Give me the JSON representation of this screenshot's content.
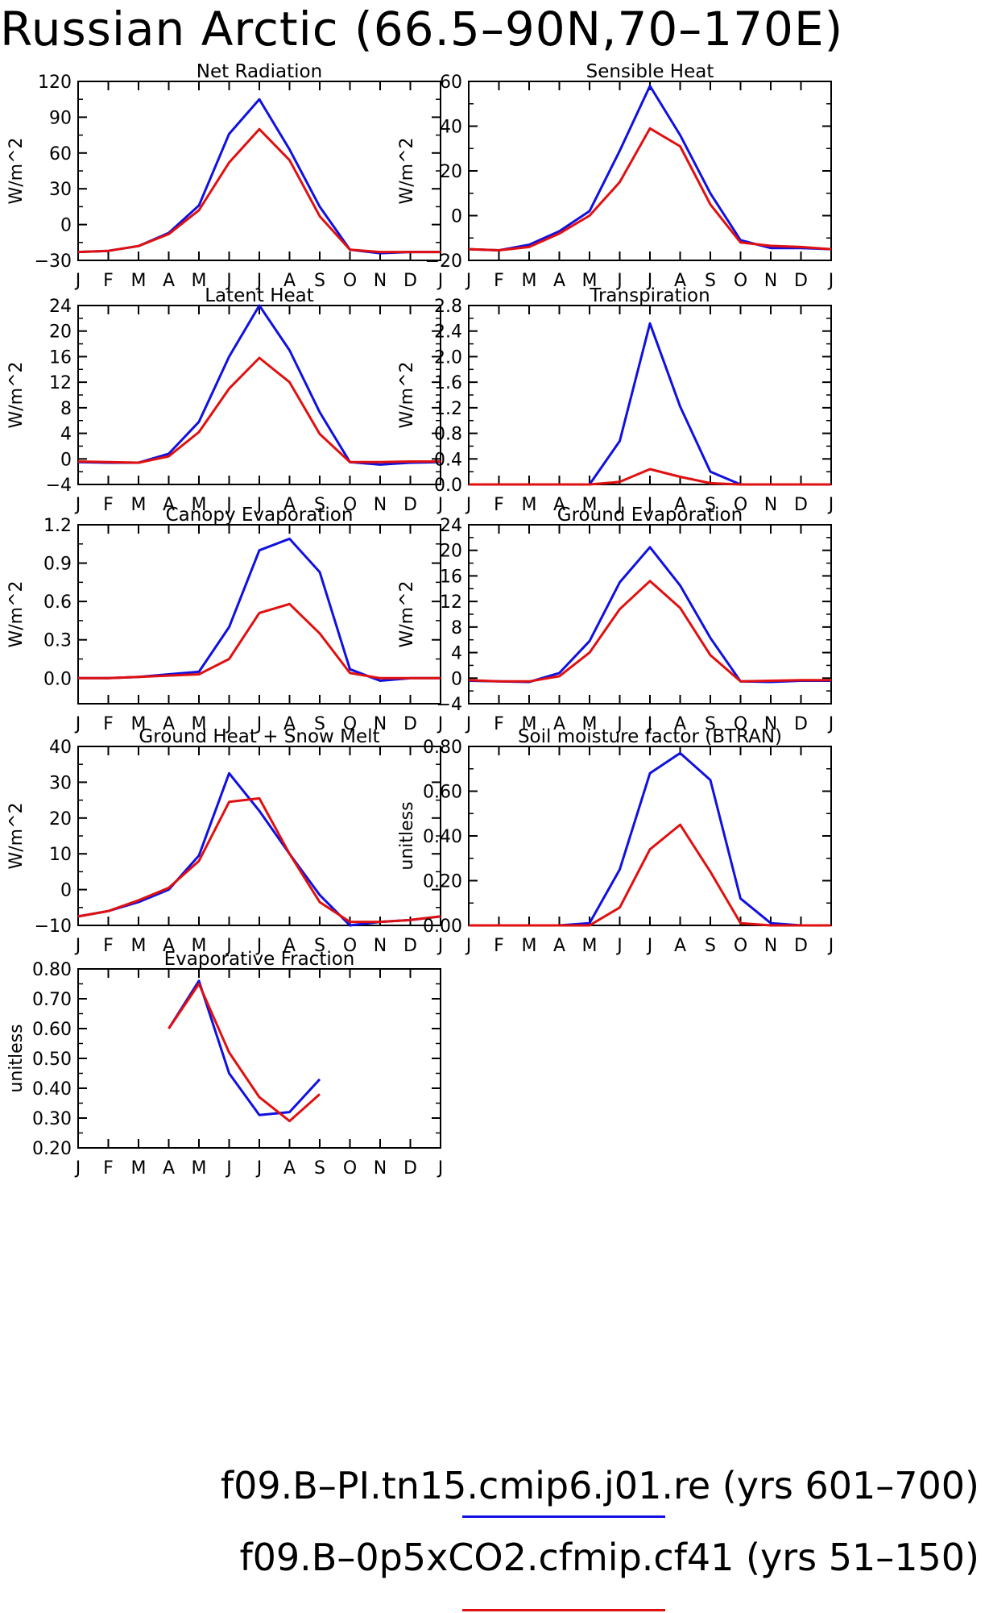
{
  "page": {
    "title": "Russian Arctic (66.5–90N,70–170E)"
  },
  "months": [
    "J",
    "F",
    "M",
    "A",
    "M",
    "J",
    "J",
    "A",
    "S",
    "O",
    "N",
    "D",
    "J"
  ],
  "legend": [
    {
      "label": "f09.B–PI.tn15.cmip6.j01.re (yrs 601–700)",
      "color": "#1010e0"
    },
    {
      "label": "f09.B–0p5xCO2.cfmip.cf41 (yrs 51–150)",
      "color": "#e01010"
    }
  ],
  "chart_data": [
    {
      "type": "line",
      "title": "Net Radiation",
      "ylabel": "W/m^2",
      "ylim": [
        -30,
        120
      ],
      "yticks": [
        -30,
        0,
        30,
        60,
        90,
        120
      ],
      "ytick_labels": [
        "−30",
        "0",
        "30",
        "60",
        "90",
        "120"
      ],
      "x": [
        "J",
        "F",
        "M",
        "A",
        "M",
        "J",
        "J",
        "A",
        "S",
        "O",
        "N",
        "D",
        "J"
      ],
      "series": [
        {
          "color": "#1010e0",
          "values": [
            -23,
            -22,
            -18,
            -7,
            16,
            76,
            105,
            63,
            15,
            -21,
            -24,
            -23,
            -23
          ]
        },
        {
          "color": "#e01010",
          "values": [
            -23,
            -22,
            -18,
            -8,
            12,
            52,
            80,
            54,
            7,
            -21,
            -23,
            -23,
            -23
          ]
        }
      ]
    },
    {
      "type": "line",
      "title": "Sensible Heat",
      "ylabel": "W/m^2",
      "ylim": [
        -20,
        60
      ],
      "yticks": [
        -20,
        0,
        20,
        40,
        60
      ],
      "ytick_labels": [
        "−20",
        "0",
        "20",
        "40",
        "60"
      ],
      "x": [
        "J",
        "F",
        "M",
        "A",
        "M",
        "J",
        "J",
        "A",
        "S",
        "O",
        "N",
        "D",
        "J"
      ],
      "series": [
        {
          "color": "#1010e0",
          "values": [
            -15,
            -15.5,
            -13,
            -7,
            2,
            29,
            58,
            36,
            10,
            -11,
            -14.5,
            -14.5,
            -15
          ]
        },
        {
          "color": "#e01010",
          "values": [
            -15,
            -15.5,
            -14,
            -8,
            0,
            15,
            39,
            31,
            5,
            -12,
            -13.5,
            -14,
            -15
          ]
        }
      ]
    },
    {
      "type": "line",
      "title": "Latent Heat",
      "ylabel": "W/m^2",
      "ylim": [
        -4,
        24
      ],
      "yticks": [
        -4,
        0,
        4,
        8,
        12,
        16,
        20,
        24
      ],
      "ytick_labels": [
        "−4",
        "0",
        "4",
        "8",
        "12",
        "16",
        "20",
        "24"
      ],
      "x": [
        "J",
        "F",
        "M",
        "A",
        "M",
        "J",
        "J",
        "A",
        "S",
        "O",
        "N",
        "D",
        "J"
      ],
      "series": [
        {
          "color": "#1010e0",
          "values": [
            -0.5,
            -0.6,
            -0.6,
            0.8,
            5.8,
            16,
            24,
            17,
            7.3,
            -0.5,
            -0.9,
            -0.6,
            -0.5
          ]
        },
        {
          "color": "#e01010",
          "values": [
            -0.4,
            -0.5,
            -0.6,
            0.4,
            4.2,
            11,
            15.8,
            12,
            3.9,
            -0.5,
            -0.5,
            -0.4,
            -0.4
          ]
        }
      ]
    },
    {
      "type": "line",
      "title": "Transpiration",
      "ylabel": "W/m^2",
      "ylim": [
        0,
        2.8
      ],
      "yticks": [
        0,
        0.4,
        0.8,
        1.2,
        1.6,
        2.0,
        2.4,
        2.8
      ],
      "ytick_labels": [
        "0.0",
        "0.4",
        "0.8",
        "1.2",
        "1.6",
        "2.0",
        "2.4",
        "2.8"
      ],
      "x": [
        "J",
        "F",
        "M",
        "A",
        "M",
        "J",
        "J",
        "A",
        "S",
        "O",
        "N",
        "D",
        "J"
      ],
      "series": [
        {
          "color": "#1010e0",
          "values": [
            0,
            0,
            0,
            0,
            0,
            0.68,
            2.52,
            1.22,
            0.2,
            0,
            0,
            0,
            0
          ]
        },
        {
          "color": "#e01010",
          "values": [
            0,
            0,
            0,
            0,
            0,
            0.04,
            0.24,
            0.12,
            0.02,
            0,
            0,
            0,
            0
          ]
        }
      ]
    },
    {
      "type": "line",
      "title": "Canopy Evaporation",
      "ylabel": "W/m^2",
      "ylim": [
        -0.2,
        1.2
      ],
      "yticks": [
        0,
        0.3,
        0.6,
        0.9,
        1.2
      ],
      "ytick_labels": [
        "0.0",
        "0.3",
        "0.6",
        "0.9",
        "1.2"
      ],
      "x": [
        "J",
        "F",
        "M",
        "A",
        "M",
        "J",
        "J",
        "A",
        "S",
        "O",
        "N",
        "D",
        "J"
      ],
      "series": [
        {
          "color": "#1010e0",
          "values": [
            0,
            0,
            0.01,
            0.03,
            0.05,
            0.4,
            1.0,
            1.09,
            0.83,
            0.07,
            -0.02,
            0,
            0
          ]
        },
        {
          "color": "#e01010",
          "values": [
            0,
            0,
            0.01,
            0.02,
            0.03,
            0.15,
            0.51,
            0.58,
            0.35,
            0.04,
            0,
            0,
            0
          ]
        }
      ]
    },
    {
      "type": "line",
      "title": "Ground Evaporation",
      "ylabel": "W/m^2",
      "ylim": [
        -4,
        24
      ],
      "yticks": [
        -4,
        0,
        4,
        8,
        12,
        16,
        20,
        24
      ],
      "ytick_labels": [
        "−4",
        "0",
        "4",
        "8",
        "12",
        "16",
        "20",
        "24"
      ],
      "x": [
        "J",
        "F",
        "M",
        "A",
        "M",
        "J",
        "J",
        "A",
        "S",
        "O",
        "N",
        "D",
        "J"
      ],
      "series": [
        {
          "color": "#1010e0",
          "values": [
            -0.4,
            -0.5,
            -0.6,
            0.8,
            5.8,
            15,
            20.5,
            14.5,
            6.3,
            -0.5,
            -0.6,
            -0.4,
            -0.4
          ]
        },
        {
          "color": "#e01010",
          "values": [
            -0.3,
            -0.5,
            -0.5,
            0.3,
            4.0,
            10.8,
            15.2,
            11,
            3.6,
            -0.5,
            -0.4,
            -0.3,
            -0.3
          ]
        }
      ]
    },
    {
      "type": "line",
      "title": "Ground Heat + Snow Melt",
      "ylabel": "W/m^2",
      "ylim": [
        -10,
        40
      ],
      "yticks": [
        -10,
        0,
        10,
        20,
        30,
        40
      ],
      "ytick_labels": [
        "−10",
        "0",
        "10",
        "20",
        "30",
        "40"
      ],
      "x": [
        "J",
        "F",
        "M",
        "A",
        "M",
        "J",
        "J",
        "A",
        "S",
        "O",
        "N",
        "D",
        "J"
      ],
      "series": [
        {
          "color": "#1010e0",
          "values": [
            -7.5,
            -6,
            -3.5,
            0,
            9.5,
            32.5,
            22,
            10,
            -1.5,
            -10,
            -9,
            -8.5,
            -7.5
          ]
        },
        {
          "color": "#e01010",
          "values": [
            -7.5,
            -6,
            -3,
            0.5,
            8,
            24.5,
            25.5,
            10,
            -3.5,
            -9,
            -9,
            -8.5,
            -7.5
          ]
        }
      ]
    },
    {
      "type": "line",
      "title": "Soil moisture factor (BTRAN)",
      "ylabel": "unitless",
      "ylim": [
        0,
        0.8
      ],
      "yticks": [
        0,
        0.2,
        0.4,
        0.6,
        0.8
      ],
      "ytick_labels": [
        "0.00",
        "0.20",
        "0.40",
        "0.60",
        "0.80"
      ],
      "x": [
        "J",
        "F",
        "M",
        "A",
        "M",
        "J",
        "J",
        "A",
        "S",
        "O",
        "N",
        "D",
        "J"
      ],
      "series": [
        {
          "color": "#1010e0",
          "values": [
            0,
            0,
            0,
            0,
            0.01,
            0.25,
            0.68,
            0.77,
            0.65,
            0.12,
            0.01,
            0,
            0
          ]
        },
        {
          "color": "#e01010",
          "values": [
            0,
            0,
            0,
            0,
            0,
            0.08,
            0.34,
            0.45,
            0.24,
            0.01,
            0,
            0,
            0
          ]
        }
      ]
    },
    {
      "type": "line",
      "title": "Evaporative Fraction",
      "ylabel": "unitless",
      "ylim": [
        0.2,
        0.8
      ],
      "yticks": [
        0.2,
        0.3,
        0.4,
        0.5,
        0.6,
        0.7,
        0.8
      ],
      "ytick_labels": [
        "0.20",
        "0.30",
        "0.40",
        "0.50",
        "0.60",
        "0.70",
        "0.80"
      ],
      "x": [
        "J",
        "F",
        "M",
        "A",
        "M",
        "J",
        "J",
        "A",
        "S",
        "O",
        "N",
        "D",
        "J"
      ],
      "series": [
        {
          "color": "#1010e0",
          "values": [
            null,
            null,
            null,
            0.6,
            0.76,
            0.45,
            0.31,
            0.32,
            0.43,
            null,
            null,
            null,
            null
          ]
        },
        {
          "color": "#e01010",
          "values": [
            null,
            null,
            null,
            0.6,
            0.75,
            0.52,
            0.37,
            0.29,
            0.38,
            null,
            null,
            null,
            null
          ]
        }
      ]
    }
  ]
}
